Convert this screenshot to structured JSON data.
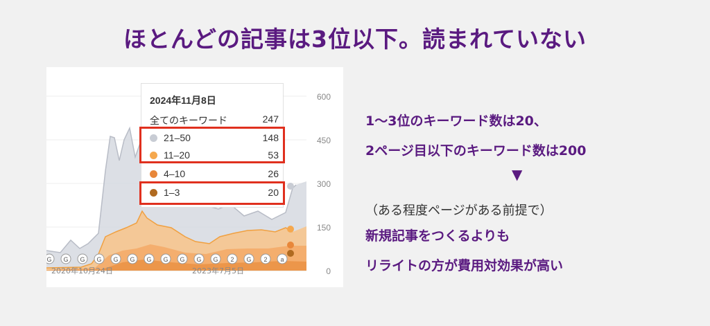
{
  "title": "ほとんどの記事は3位以下。読まれていない",
  "chart_data": {
    "type": "area",
    "x_tick_labels": [
      "2020年10月24日",
      "2023年7月5日"
    ],
    "y_ticks": [
      "600",
      "450",
      "300",
      "150",
      "0"
    ],
    "ylim": [
      0,
      600
    ],
    "series_colors": {
      "21-50": "#c8ccd4",
      "11-20": "#f5a84e",
      "4-10": "#e8873a",
      "1-3": "#b06a20"
    },
    "tooltip": {
      "date": "2024年11月8日",
      "total_label": "全てのキーワード",
      "total_value": "247",
      "rows": [
        {
          "label": "21–50",
          "value": "148",
          "color": "#c8ccd4"
        },
        {
          "label": "11–20",
          "value": "53",
          "color": "#f5a84e"
        },
        {
          "label": "4–10",
          "value": "26",
          "color": "#e8873a"
        },
        {
          "label": "1–3",
          "value": "20",
          "color": "#b06a20"
        }
      ]
    }
  },
  "right": {
    "line1": "1～3位のキーワード数は20、",
    "line2": "2ページ目以下のキーワード数は200",
    "arrow": "▼",
    "line3": "（ある程度ページがある前提で）",
    "line4": "新規記事をつくるよりも",
    "line5": "リライトの方が費用対効果が高い"
  },
  "markers": [
    "G",
    "G",
    "G",
    "G",
    "G",
    "G",
    "G",
    "G",
    "G",
    "G",
    "G",
    "2",
    "G",
    "2",
    "a"
  ]
}
